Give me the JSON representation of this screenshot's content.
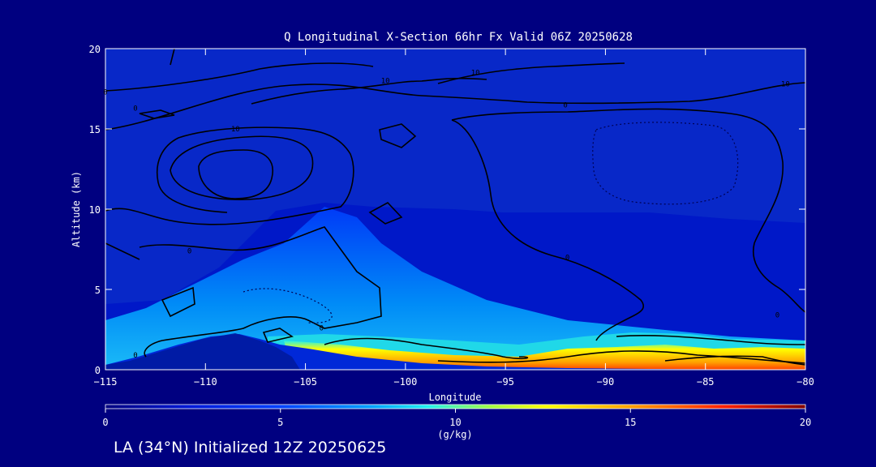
{
  "chart_data": {
    "type": "heatmap",
    "title": "Q Longitudinal X-Section 66hr  Fx Valid 06Z 20250628",
    "xlabel": "Longitude",
    "ylabel": "Altitude (km)",
    "xlim": [
      -115,
      -80
    ],
    "ylim": [
      0,
      20
    ],
    "x_ticks": [
      -115,
      -110,
      -105,
      -100,
      -95,
      -90,
      -85,
      -80
    ],
    "x_tick_labels": [
      "−115",
      "−110",
      "−105",
      "−100",
      "−95",
      "−90",
      "−85",
      "−80"
    ],
    "y_ticks": [
      0,
      5,
      10,
      15,
      20
    ],
    "y_tick_labels": [
      "0",
      "5",
      "10",
      "15",
      "20"
    ],
    "colorbar": {
      "label": "(g/kg)",
      "range": [
        0,
        20
      ],
      "ticks": [
        0,
        5,
        10,
        15,
        20
      ],
      "tick_labels": [
        "0",
        "5",
        "10",
        "15",
        "20"
      ],
      "colors": [
        "#000080",
        "#0030ff",
        "#00a8ff",
        "#20ffe0",
        "#a0ff40",
        "#ffff00",
        "#ffa000",
        "#ff2000",
        "#800000"
      ]
    },
    "moisture_profile": [
      {
        "lon": -115,
        "surface": 0.3,
        "q_low": 4,
        "moist_top": 3.0
      },
      {
        "lon": -112,
        "surface": 1.0,
        "q_low": 5,
        "moist_top": 3.2
      },
      {
        "lon": -108.5,
        "surface": 2.1,
        "q_low": 6,
        "moist_top": 4.5
      },
      {
        "lon": -107,
        "surface": 1.8,
        "q_low": 10,
        "moist_top": 6.5
      },
      {
        "lon": -105,
        "surface": 1.5,
        "q_low": 13,
        "moist_top": 7.0
      },
      {
        "lon": -100,
        "surface": 0.8,
        "q_low": 15,
        "moist_top": 5.5
      },
      {
        "lon": -95,
        "surface": 0.5,
        "q_low": 15,
        "moist_top": 4.5
      },
      {
        "lon": -90,
        "surface": 0.2,
        "q_low": 16,
        "moist_top": 4.0
      },
      {
        "lon": -85,
        "surface": 0.1,
        "q_low": 17,
        "moist_top": 3.5
      },
      {
        "lon": -80,
        "surface": 0.0,
        "q_low": 16,
        "moist_top": 3.0
      }
    ],
    "contour_labels": [
      {
        "text": "0",
        "lon": -104.2,
        "alt": 2.6
      },
      {
        "text": "0",
        "lon": -110.8,
        "alt": 7.4
      },
      {
        "text": "0",
        "lon": -113.5,
        "alt": 0.9
      },
      {
        "text": "0",
        "lon": -91.9,
        "alt": 7.0
      },
      {
        "text": "0",
        "lon": -81.4,
        "alt": 3.4
      },
      {
        "text": "10",
        "lon": -108.5,
        "alt": 15.0
      },
      {
        "text": "10",
        "lon": -101.0,
        "alt": 18.0
      },
      {
        "text": "10",
        "lon": -96.5,
        "alt": 18.5
      },
      {
        "text": "10",
        "lon": -81.0,
        "alt": 17.8
      },
      {
        "text": "0",
        "lon": -113.5,
        "alt": 16.3
      },
      {
        "text": "0",
        "lon": -115.0,
        "alt": 17.3
      },
      {
        "text": "0",
        "lon": -92.0,
        "alt": 16.5
      }
    ]
  },
  "footer_text": "LA (34°N) Initialized 12Z 20250625"
}
